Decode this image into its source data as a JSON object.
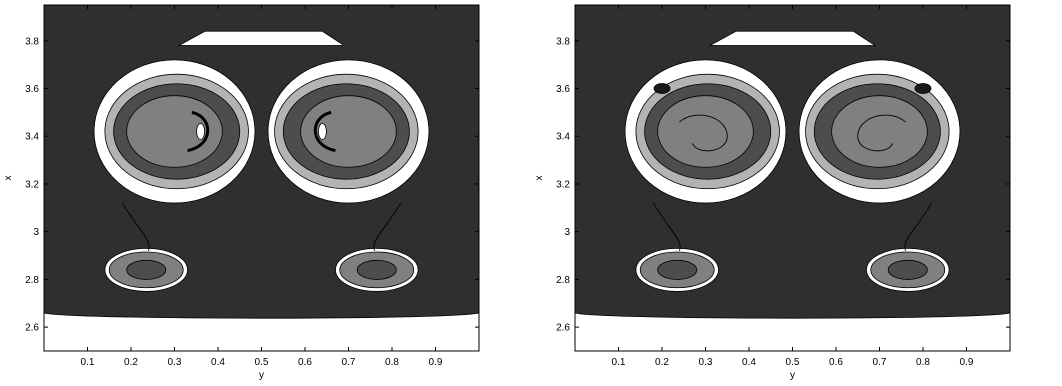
{
  "chart_data": [
    {
      "type": "contour",
      "title": "",
      "xlabel": "y",
      "ylabel": "x",
      "xlim": [
        0,
        1
      ],
      "ylim": [
        2.5,
        3.95
      ],
      "xticks": [
        "0.1",
        "0.2",
        "0.3",
        "0.4",
        "0.5",
        "0.6",
        "0.7",
        "0.8",
        "0.9"
      ],
      "yticks": [
        "2.6",
        "2.8",
        "3",
        "3.2",
        "3.4",
        "3.6",
        "3.8"
      ],
      "colormap": "grayscale",
      "grid": false
    },
    {
      "type": "contour",
      "title": "",
      "xlabel": "y",
      "ylabel": "x",
      "xlim": [
        0,
        1
      ],
      "ylim": [
        2.5,
        3.95
      ],
      "xticks": [
        "0.1",
        "0.2",
        "0.3",
        "0.4",
        "0.5",
        "0.6",
        "0.7",
        "0.8",
        "0.9"
      ],
      "yticks": [
        "2.6",
        "2.8",
        "3",
        "3.2",
        "3.4",
        "3.6",
        "3.8"
      ],
      "colormap": "grayscale",
      "grid": false
    }
  ],
  "colors": {
    "background_field": "#2f2f2f",
    "level_dark": "#1a1a1a",
    "level_mid_dark": "#4d4d4d",
    "level_mid": "#808080",
    "level_light": "#b3b3b3",
    "level_white": "#ffffff"
  }
}
